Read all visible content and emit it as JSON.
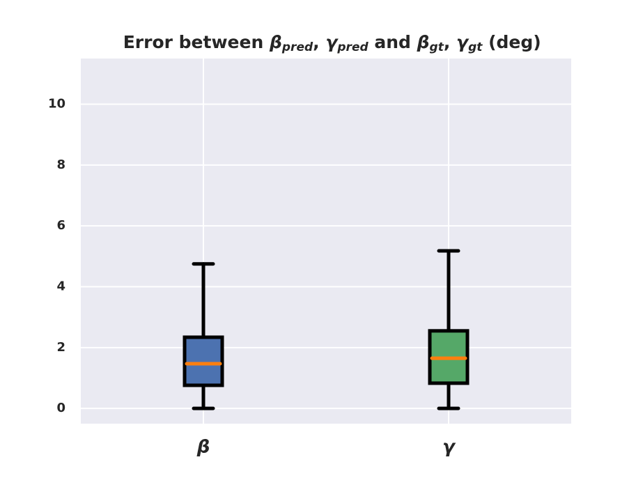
{
  "chart_data": {
    "type": "box",
    "title": [
      "Error between ",
      "β",
      "pred",
      ", ",
      "γ",
      "pred",
      " and ",
      "β",
      "gt",
      ", ",
      "γ",
      "gt",
      " (deg)"
    ],
    "categories": [
      "β",
      "γ"
    ],
    "boxes": [
      {
        "color": "#4c72b0",
        "whislo": 0,
        "q1": 0.76,
        "med": 1.47,
        "q3": 2.34,
        "whishi": 4.75
      },
      {
        "color": "#55a868",
        "whislo": 0,
        "q1": 0.83,
        "med": 1.65,
        "q3": 2.55,
        "whishi": 5.18
      }
    ],
    "median_color": "#ff7f0e",
    "ylim": [
      -0.5,
      11.5
    ],
    "yticks": [
      0,
      2,
      4,
      6,
      8,
      10
    ],
    "grid": true
  }
}
